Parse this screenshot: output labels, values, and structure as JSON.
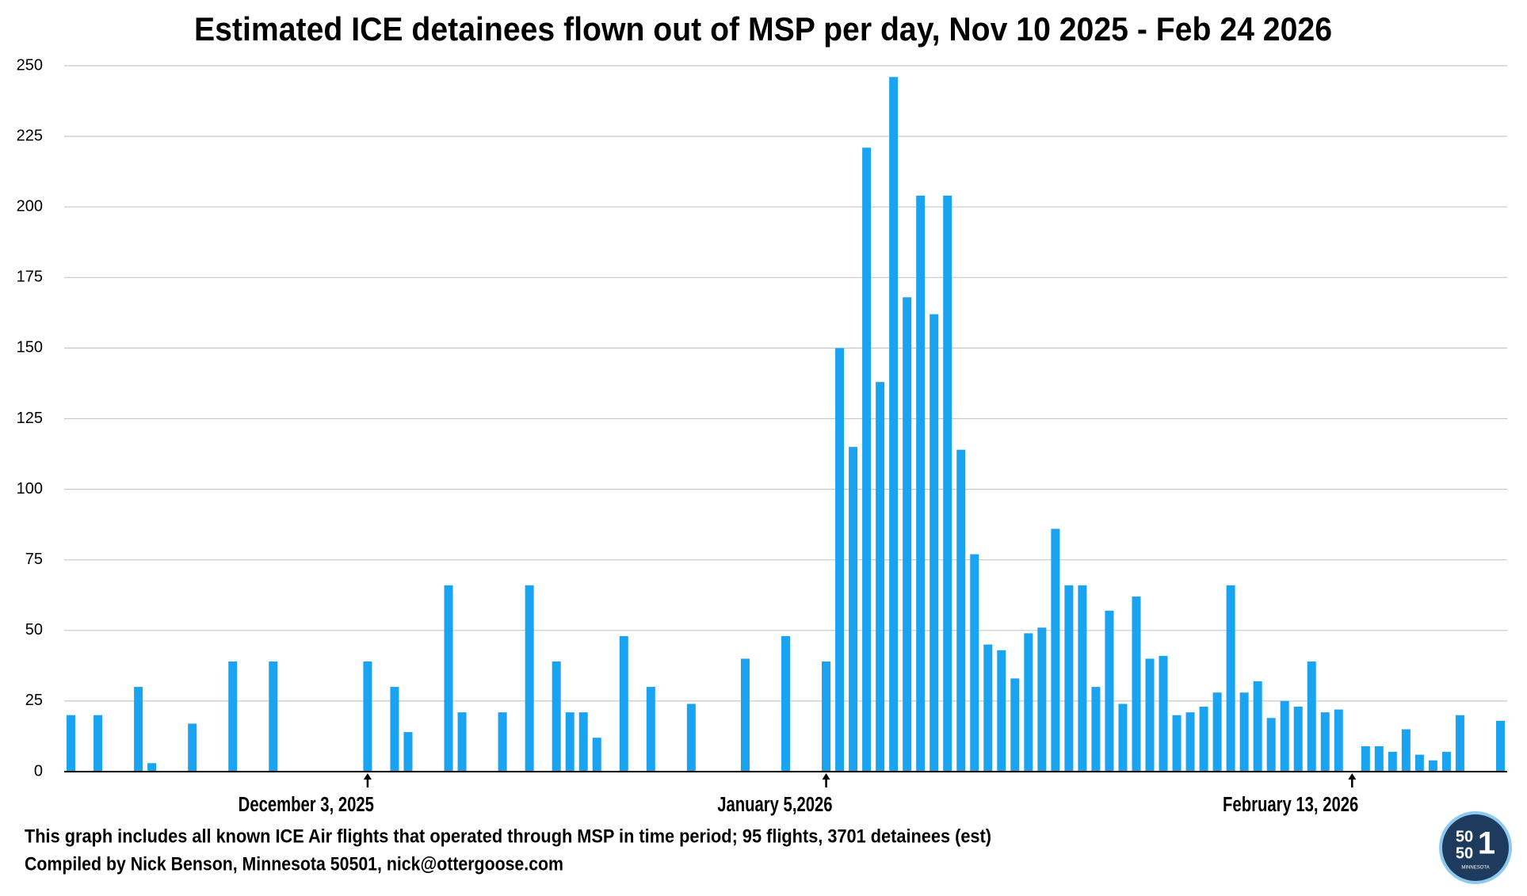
{
  "chart_data": {
    "type": "bar",
    "title": "Estimated ICE detainees flown out of MSP per day, Nov 10 2025 - Feb 24 2026",
    "categories": [
      null,
      null,
      null,
      null,
      null,
      null,
      null,
      null,
      null,
      null,
      null,
      null,
      null,
      null,
      null,
      null,
      null,
      null,
      null,
      null,
      null,
      null,
      "December 3, 2025",
      null,
      null,
      null,
      null,
      null,
      null,
      null,
      null,
      null,
      null,
      null,
      null,
      null,
      null,
      null,
      null,
      null,
      null,
      null,
      null,
      null,
      null,
      null,
      null,
      null,
      null,
      null,
      null,
      null,
      null,
      null,
      null,
      null,
      "January 5,2026",
      null,
      null,
      null,
      null,
      null,
      null,
      null,
      null,
      null,
      null,
      null,
      null,
      null,
      null,
      null,
      null,
      null,
      null,
      null,
      null,
      null,
      null,
      null,
      null,
      null,
      null,
      null,
      null,
      null,
      null,
      null,
      null,
      null,
      null,
      null,
      null,
      null,
      null,
      "February 13, 2026",
      null,
      null,
      null,
      null,
      null,
      null,
      null,
      null,
      null,
      null,
      null
    ],
    "values": [
      20,
      0,
      20,
      0,
      0,
      30,
      3,
      0,
      0,
      17,
      0,
      0,
      39,
      0,
      0,
      39,
      0,
      0,
      0,
      0,
      0,
      0,
      39,
      0,
      30,
      14,
      0,
      0,
      66,
      21,
      0,
      0,
      21,
      0,
      66,
      0,
      39,
      21,
      21,
      12,
      0,
      48,
      0,
      30,
      0,
      0,
      24,
      0,
      0,
      0,
      40,
      0,
      0,
      48,
      0,
      0,
      39,
      150,
      115,
      221,
      138,
      246,
      168,
      204,
      162,
      204,
      114,
      77,
      45,
      43,
      33,
      49,
      51,
      86,
      66,
      66,
      30,
      57,
      24,
      62,
      40,
      41,
      20,
      21,
      23,
      28,
      66,
      28,
      32,
      19,
      25,
      23,
      39,
      21,
      22,
      0,
      9,
      9,
      7,
      15,
      6,
      4,
      7,
      20,
      0,
      0,
      18
    ],
    "color": "#1aa3f0",
    "ylim": [
      0,
      250
    ],
    "yticks": [
      0,
      25,
      50,
      75,
      100,
      125,
      150,
      175,
      200,
      225,
      250
    ],
    "grid": true,
    "notes": [
      "This graph includes all known ICE Air flights that operated through MSP in time period; 95 flights, 3701 detainees (est)",
      "Compiled by Nick Benson, Minnesota 50501, nick@ottergoose.com"
    ],
    "logo": [
      "50",
      "50",
      "1",
      "MINNESOTA"
    ]
  }
}
